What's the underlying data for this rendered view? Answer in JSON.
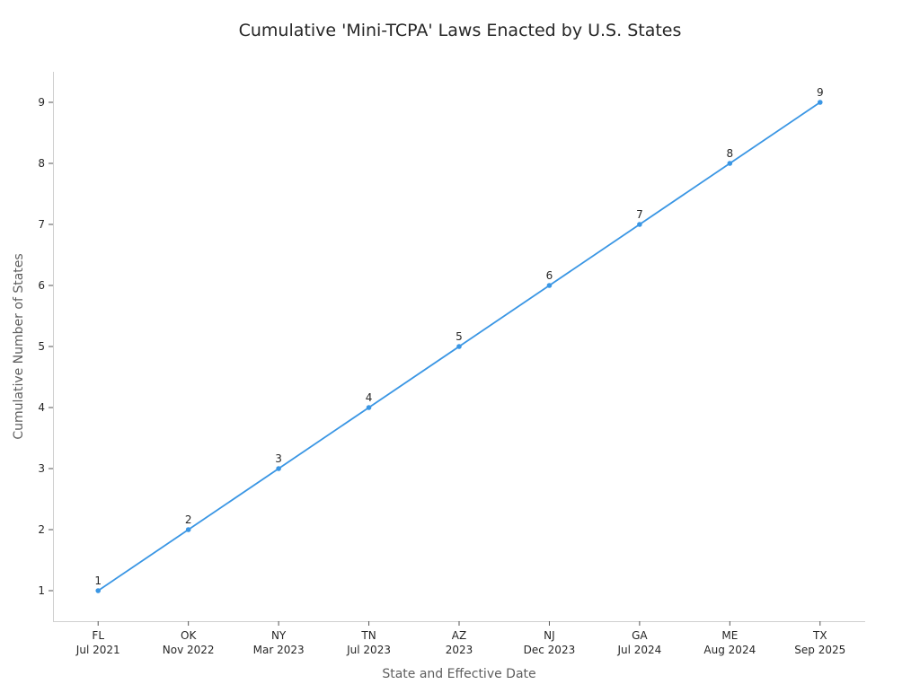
{
  "chart_data": {
    "type": "line",
    "title": "Cumulative 'Mini-TCPA' Laws Enacted by U.S. States",
    "xlabel": "State and Effective Date",
    "ylabel": "Cumulative Number of States",
    "categories": [
      [
        "FL",
        "Jul 2021"
      ],
      [
        "OK",
        "Nov 2022"
      ],
      [
        "NY",
        "Mar 2023"
      ],
      [
        "TN",
        "Jul 2023"
      ],
      [
        "AZ",
        "2023"
      ],
      [
        "NJ",
        "Dec 2023"
      ],
      [
        "GA",
        "Jul 2024"
      ],
      [
        "ME",
        "Aug 2024"
      ],
      [
        "TX",
        "Sep 2025"
      ]
    ],
    "values": [
      1,
      2,
      3,
      4,
      5,
      6,
      7,
      8,
      9
    ],
    "data_labels": [
      "1",
      "2",
      "3",
      "4",
      "5",
      "6",
      "7",
      "8",
      "9"
    ],
    "yticks": [
      1,
      2,
      3,
      4,
      5,
      6,
      7,
      8,
      9
    ],
    "ylim": [
      0.5,
      9.5
    ],
    "xlim": [
      -0.5,
      8.5
    ],
    "grid": false,
    "line_color": "#3a96e4"
  }
}
